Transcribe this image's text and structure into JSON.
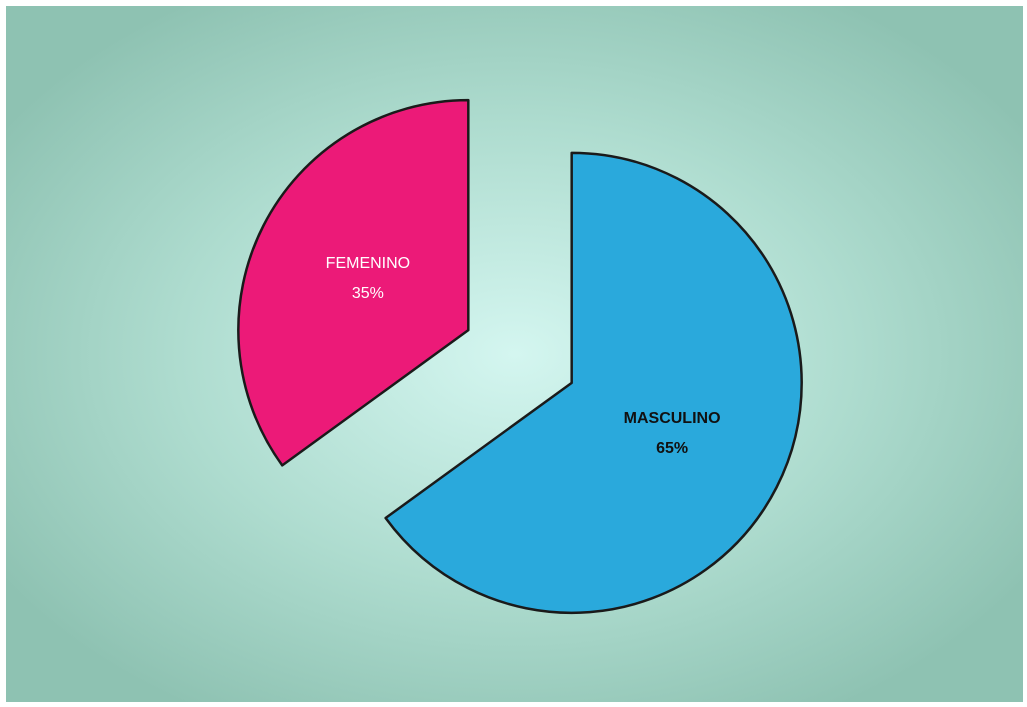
{
  "chart_data": {
    "type": "pie",
    "categories": [
      "MASCULINO",
      "FEMENINO"
    ],
    "values": [
      65,
      35
    ],
    "value_labels": [
      "65%",
      "35%"
    ],
    "colors": [
      "#2aa9dc",
      "#ec1a78"
    ]
  }
}
